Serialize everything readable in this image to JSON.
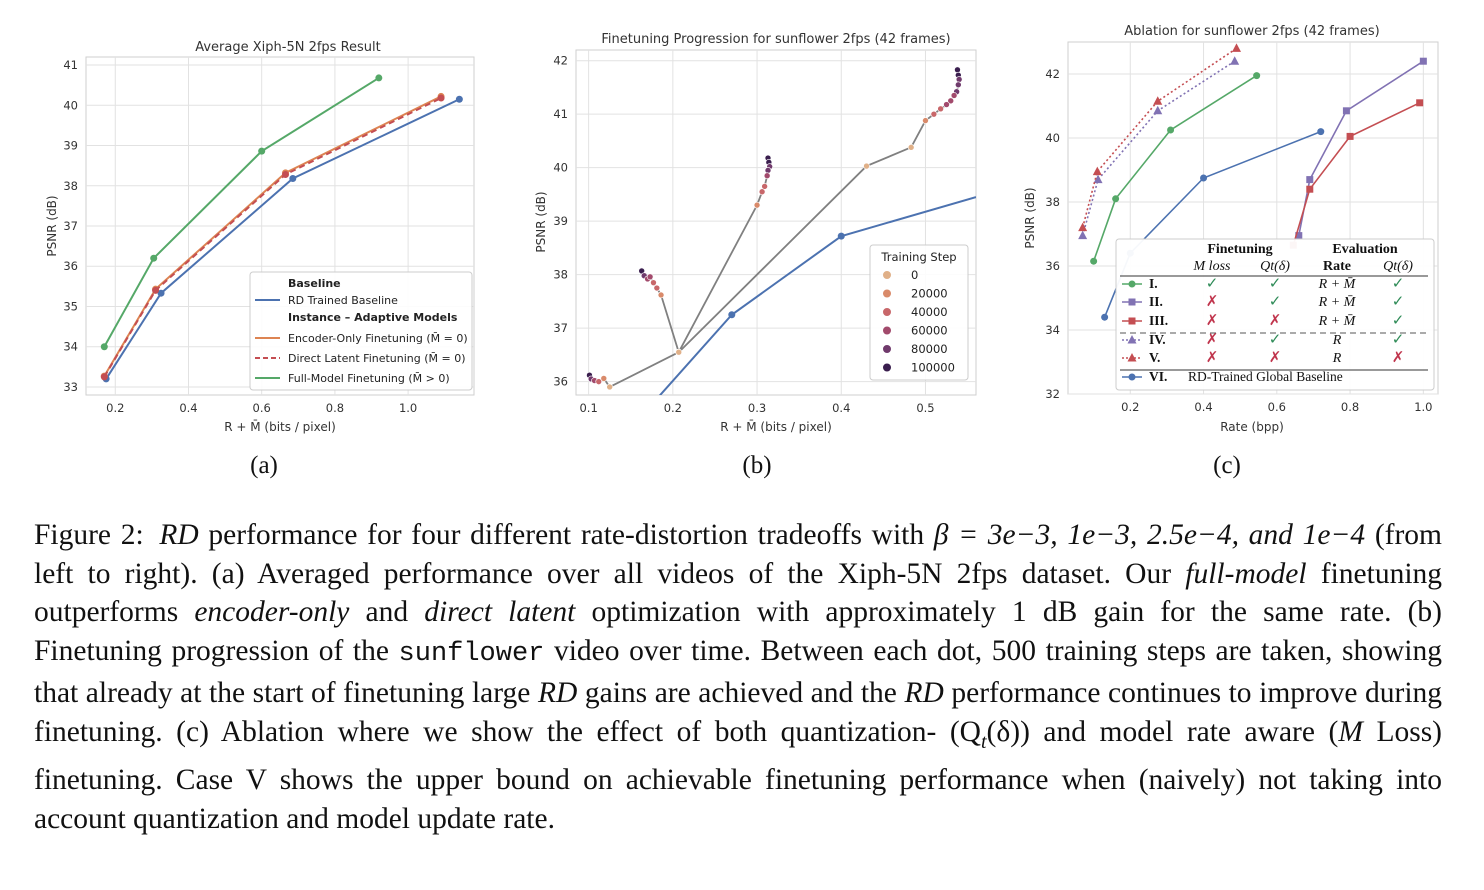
{
  "chart_data": [
    {
      "type": "line",
      "panel_label": "(a)",
      "title": "Average Xiph-5N 2fps Result",
      "xlabel": "R + M̄ (bits / pixel)",
      "ylabel": "PSNR (dB)",
      "xlim": [
        0.12,
        1.18
      ],
      "ylim": [
        32.8,
        41.2
      ],
      "xticks": [
        "0.2",
        "0.4",
        "0.6",
        "0.8",
        "1.0"
      ],
      "yticks": [
        "33",
        "34",
        "35",
        "36",
        "37",
        "38",
        "39",
        "40",
        "41"
      ],
      "grid": true,
      "legend_position": "bottom-right",
      "legend_headers": [
        "Baseline",
        "Instance – Adaptive Models"
      ],
      "series": [
        {
          "name": "RD Trained Baseline",
          "color": "#4c72b0",
          "dash": "solid",
          "x": [
            0.175,
            0.325,
            0.685,
            1.14
          ],
          "y": [
            33.2,
            35.33,
            38.18,
            40.15
          ]
        },
        {
          "name": "Encoder-Only Finetuning (M̄ = 0)",
          "color": "#dd8452",
          "dash": "solid",
          "x": [
            0.17,
            0.31,
            0.665,
            1.09
          ],
          "y": [
            33.27,
            35.43,
            38.32,
            40.22
          ]
        },
        {
          "name": "Direct Latent Finetuning (M̄ = 0)",
          "color": "#c44e52",
          "dash": "dashed",
          "x": [
            0.17,
            0.31,
            0.665,
            1.09
          ],
          "y": [
            33.25,
            35.4,
            38.28,
            40.18
          ]
        },
        {
          "name": "Full-Model Finetuning (M̄ > 0)",
          "color": "#55a868",
          "dash": "solid",
          "x": [
            0.17,
            0.305,
            0.6,
            0.92
          ],
          "y": [
            34.0,
            36.2,
            38.86,
            40.68
          ]
        }
      ]
    },
    {
      "type": "scatter",
      "panel_label": "(b)",
      "title": "Finetuning Progression for sunflower 2fps (42 frames)",
      "xlabel": "R + M̄ (bits / pixel)",
      "ylabel": "PSNR (dB)",
      "xlim": [
        0.085,
        0.56
      ],
      "ylim": [
        35.75,
        42.2
      ],
      "xticks": [
        "0.1",
        "0.2",
        "0.3",
        "0.4",
        "0.5"
      ],
      "yticks": [
        "36",
        "37",
        "38",
        "39",
        "40",
        "41",
        "42"
      ],
      "grid": true,
      "legend_title": "Training Step",
      "legend_position": "bottom-right",
      "legend_steps": [
        "0",
        "20000",
        "40000",
        "60000",
        "80000",
        "100000"
      ],
      "step_colors": [
        "#e0b088",
        "#d98a6a",
        "#c8676a",
        "#a24a6c",
        "#703a6c",
        "#3a1e4e"
      ],
      "baseline": {
        "color": "#4c72b0",
        "x": [
          0.168,
          0.27,
          0.4,
          0.56
        ],
        "y": [
          35.45,
          37.25,
          38.72,
          39.45
        ]
      },
      "trajectory_color": "#808080",
      "trajectories": [
        {
          "x": [
            0.101,
            0.103,
            0.107,
            0.112,
            0.118,
            0.125,
            0.207
          ],
          "y": [
            36.12,
            36.05,
            36.02,
            36.0,
            36.06,
            35.9,
            36.55
          ],
          "step": [
            5,
            4,
            3,
            2,
            1,
            0,
            0
          ]
        },
        {
          "x": [
            0.163,
            0.166,
            0.17,
            0.173,
            0.177,
            0.181,
            0.186,
            0.207
          ],
          "y": [
            38.07,
            37.98,
            37.92,
            37.96,
            37.85,
            37.75,
            37.62,
            36.55
          ],
          "step": [
            5,
            4,
            3,
            3,
            2,
            2,
            1,
            0
          ]
        },
        {
          "x": [
            0.313,
            0.314,
            0.315,
            0.313,
            0.312,
            0.309,
            0.306,
            0.3,
            0.207
          ],
          "y": [
            40.18,
            40.1,
            40.02,
            39.95,
            39.85,
            39.65,
            39.55,
            39.3,
            36.55
          ],
          "step": [
            5,
            5,
            4,
            4,
            3,
            2,
            2,
            1,
            0
          ]
        },
        {
          "x": [
            0.538,
            0.539,
            0.54,
            0.539,
            0.537,
            0.534,
            0.53,
            0.525,
            0.518,
            0.51,
            0.5,
            0.483,
            0.43,
            0.207
          ],
          "y": [
            41.83,
            41.73,
            41.65,
            41.55,
            41.42,
            41.35,
            41.25,
            41.18,
            41.1,
            41.0,
            40.88,
            40.38,
            40.03,
            36.55
          ],
          "step": [
            5,
            5,
            4,
            4,
            4,
            3,
            3,
            3,
            2,
            2,
            1,
            0,
            0,
            0
          ]
        }
      ]
    },
    {
      "type": "line",
      "panel_label": "(c)",
      "title": "Ablation for sunflower 2fps (42 frames)",
      "xlabel": "Rate (bpp)",
      "ylabel": "PSNR (dB)",
      "xlim": [
        0.03,
        1.04
      ],
      "ylim": [
        32,
        43
      ],
      "xticks": [
        "0.2",
        "0.4",
        "0.6",
        "0.8",
        "1.0"
      ],
      "yticks": [
        "32",
        "34",
        "36",
        "38",
        "40",
        "42"
      ],
      "grid": true,
      "legend_position": "bottom-right",
      "series": [
        {
          "name": "I.",
          "color": "#55a868",
          "marker": "circle",
          "dash": "solid",
          "x": [
            0.1,
            0.16,
            0.31,
            0.545
          ],
          "y": [
            36.15,
            38.1,
            40.25,
            41.95
          ]
        },
        {
          "name": "II.",
          "color": "#8172b3",
          "marker": "square",
          "dash": "solid",
          "x": [
            0.66,
            0.69,
            0.79,
            1.0
          ],
          "y": [
            36.95,
            38.7,
            40.85,
            42.4
          ]
        },
        {
          "name": "III.",
          "color": "#c44e52",
          "marker": "square",
          "dash": "solid",
          "x": [
            0.645,
            0.69,
            0.8,
            0.99
          ],
          "y": [
            36.65,
            38.4,
            40.05,
            41.1
          ]
        },
        {
          "name": "IV.",
          "color": "#8172b3",
          "marker": "triangle",
          "dash": "dotted",
          "x": [
            0.07,
            0.112,
            0.275,
            0.485
          ],
          "y": [
            36.95,
            38.7,
            40.85,
            42.4
          ]
        },
        {
          "name": "V.",
          "color": "#c44e52",
          "marker": "triangle",
          "dash": "dotted",
          "x": [
            0.07,
            0.11,
            0.275,
            0.49
          ],
          "y": [
            37.2,
            38.95,
            41.15,
            42.8
          ]
        },
        {
          "name": "VI.",
          "color": "#4c72b0",
          "marker": "circle",
          "dash": "solid",
          "x": [
            0.13,
            0.2,
            0.4,
            0.72
          ],
          "y": [
            34.4,
            36.4,
            38.75,
            40.2
          ]
        }
      ],
      "table": {
        "group_headers": [
          "Finetuning",
          "Evaluation"
        ],
        "columns": [
          "M loss",
          "Qt(δ)",
          "Rate",
          "Qt(δ)"
        ],
        "rows": [
          {
            "label": "I.",
            "cells": [
              "✓",
              "✓",
              "R + M̄",
              "✓"
            ]
          },
          {
            "label": "II.",
            "cells": [
              "✗",
              "✓",
              "R + M̄",
              "✓"
            ]
          },
          {
            "label": "III.",
            "cells": [
              "✗",
              "✗",
              "R + M̄",
              "✓"
            ]
          },
          {
            "label": "IV.",
            "cells": [
              "✗",
              "✓",
              "R",
              "✓"
            ]
          },
          {
            "label": "V.",
            "cells": [
              "✗",
              "✗",
              "R",
              "✗"
            ]
          },
          {
            "label": "VI.",
            "cells": [
              "RD-Trained Global Baseline"
            ]
          }
        ],
        "check_color": "#2e8b57",
        "cross_color": "#c0344c"
      }
    }
  ],
  "caption": {
    "prefix": "Figure 2:",
    "rd": "RD",
    "s1": "performance for four different rate-distortion tradeoffs with",
    "beta": "β = 3e−3, 1e−3, 2.5e−4, and 1e−4",
    "s2": "(from left to right).  (a) Averaged performance over all videos of the Xiph-5N 2fps dataset. Our",
    "em1": "full-model",
    "s3": "finetuning outperforms",
    "em2": "encoder-only",
    "s4": "and",
    "em3": "direct latent",
    "s5": "optimization with approximately 1 dB gain for the same rate.  (b) Finetuning progression of the",
    "mono": "sunflower",
    "s6": "video over time.  Between each dot, 500 training steps are taken, showing that already at the start of finetuning large",
    "s7": "gains are achieved and the",
    "s8": "performance continues to improve during finetuning.  (c) Ablation where we show the effect of both quantization- (Q",
    "sub_t": "t",
    "s9": "(δ)) and model rate aware (",
    "m": "M",
    "s10": "Loss) finetuning. Case V shows the upper bound on achievable finetuning performance when (naively) not taking into account quantization and model update rate."
  }
}
